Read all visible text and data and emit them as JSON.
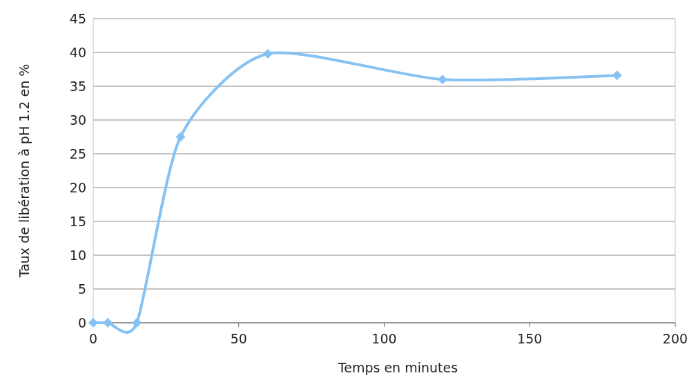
{
  "chart_data": {
    "type": "line",
    "xlabel": "Temps en minutes",
    "ylabel": "Taux de libération à pH 1.2 en %",
    "x": [
      0,
      5,
      15,
      30,
      60,
      120,
      180
    ],
    "series": [
      {
        "color": "#85c1f2",
        "values": [
          0,
          0,
          0,
          27.5,
          39.8,
          36,
          36.6
        ]
      }
    ],
    "xlim": [
      0,
      200
    ],
    "xticks": [
      0,
      50,
      100,
      150,
      200
    ],
    "ylim": [
      0,
      45
    ],
    "yticks": [
      0,
      5,
      10,
      15,
      20,
      25,
      30,
      35,
      40,
      45
    ],
    "grid": "y",
    "marker": "diamond",
    "line_style": "solid"
  }
}
